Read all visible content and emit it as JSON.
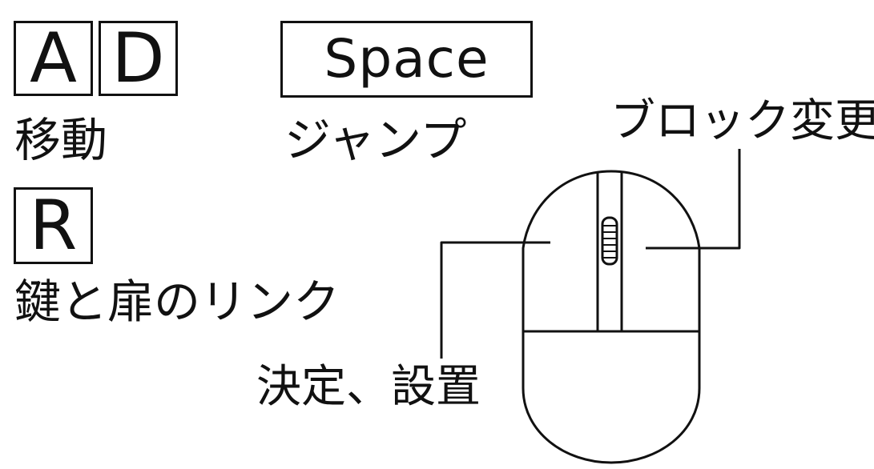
{
  "keys": {
    "a": "A",
    "d": "D",
    "space": "Space",
    "r": "R"
  },
  "captions": {
    "move": "移動",
    "jump": "ジャンプ",
    "link": "鍵と扉のリンク",
    "block_change": "ブロック変更",
    "confirm_place": "決定、設置"
  },
  "colors": {
    "ink": "#111111",
    "background": "#ffffff"
  },
  "icons": {
    "mouse": "mouse-icon"
  }
}
